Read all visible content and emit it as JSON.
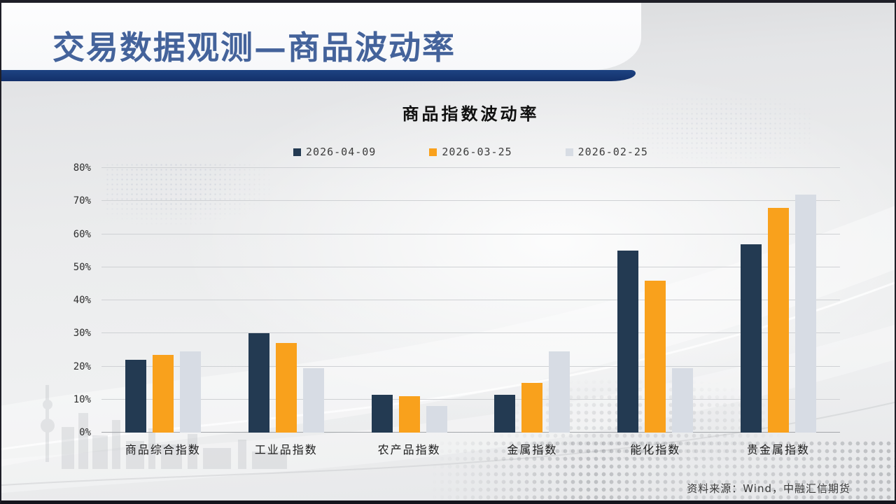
{
  "slide": {
    "header_title": "交易数据观测—商品波动率",
    "source_note": "资料来源：Wind，中融汇信期货"
  },
  "chart_data": {
    "type": "bar",
    "title": "商品指数波动率",
    "categories": [
      "商品综合指数",
      "工业品指数",
      "农产品指数",
      "金属指数",
      "能化指数",
      "贵金属指数"
    ],
    "series": [
      {
        "name": "2026-04-09",
        "color": "#233A52",
        "values": [
          22,
          30,
          11.5,
          11.5,
          55,
          57
        ]
      },
      {
        "name": "2026-03-25",
        "color": "#F9A11C",
        "values": [
          23.5,
          27,
          11,
          15,
          46,
          68
        ]
      },
      {
        "name": "2026-02-25",
        "color": "#D7DCE4",
        "values": [
          24.5,
          19.5,
          8,
          24.5,
          19.5,
          72
        ]
      }
    ],
    "xlabel": "",
    "ylabel": "",
    "ylim": [
      0,
      80
    ],
    "ytick_step": 10,
    "yticks": [
      "0%",
      "10%",
      "20%",
      "30%",
      "40%",
      "50%",
      "60%",
      "70%",
      "80%"
    ],
    "grid": true,
    "legend_position": "top"
  }
}
